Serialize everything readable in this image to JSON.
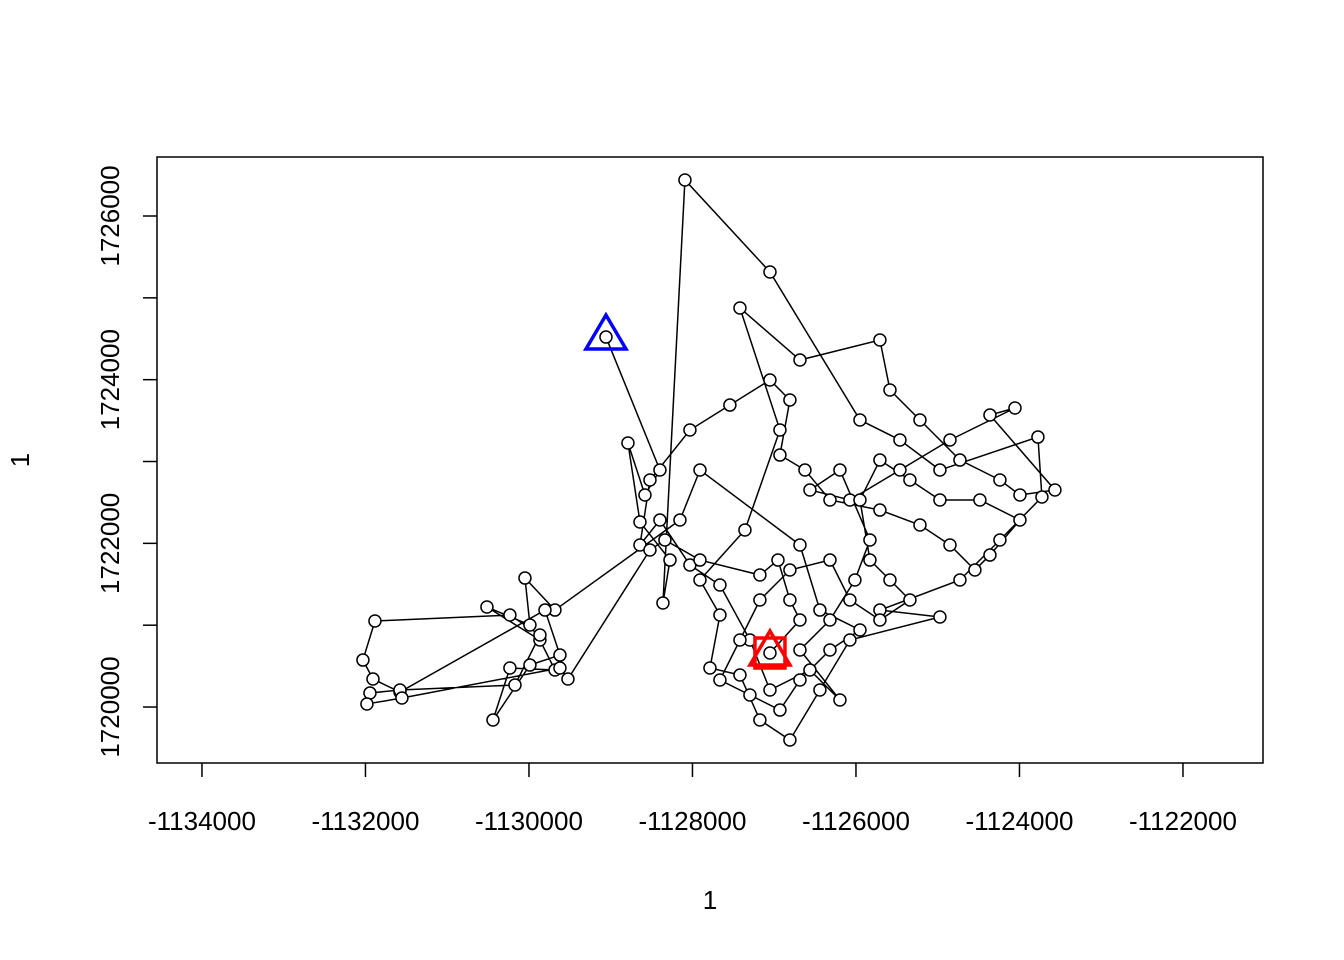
{
  "chart_data": {
    "type": "line",
    "xlabel": "1",
    "ylabel": "1",
    "xlim": [
      -1134550,
      -1121021
    ],
    "ylim": [
      1719316,
      1726721
    ],
    "xticks": [
      -1134000,
      -1132000,
      -1130000,
      -1128000,
      -1126000,
      -1124000,
      -1122000
    ],
    "yticks": [
      1720000,
      1722000,
      1724000,
      1726000
    ],
    "yminor_ticks": [
      1721000,
      1723000,
      1725000
    ],
    "line_color": "#000000",
    "point_fill": "#ffffff",
    "x": [
      -1129058,
      -1128398,
      -1128581,
      -1128789,
      -1128642,
      -1128275,
      -1128361,
      -1128092,
      -1127052,
      -1125951,
      -1125462,
      -1124973,
      -1123774,
      -1123725,
      -1124239,
      -1124728,
      -1125707,
      -1124973,
      -1126074,
      -1126441,
      -1126808,
      -1127175,
      -1127419,
      -1127786,
      -1127664,
      -1127908,
      -1127358,
      -1126930,
      -1127419,
      -1126685,
      -1125707,
      -1125584,
      -1125217,
      -1124728,
      -1124239,
      -1123994,
      -1123566,
      -1124361,
      -1124055,
      -1124850,
      -1125462,
      -1126074,
      -1126563,
      -1126196,
      -1125829,
      -1126013,
      -1126318,
      -1126685,
      -1126196,
      -1126563,
      -1127052,
      -1127297,
      -1127664,
      -1128031,
      -1128398,
      -1128642,
      -1128520,
      -1128031,
      -1127542,
      -1127052,
      -1126808,
      -1126930,
      -1126624,
      -1126318,
      -1125707,
      -1125217,
      -1124850,
      -1124545,
      -1124361,
      -1123994,
      -1124484,
      -1124973,
      -1125340,
      -1125707,
      -1125951,
      -1125829,
      -1125584,
      -1125340,
      -1125707,
      -1126074,
      -1126318,
      -1126808,
      -1127175,
      -1127419,
      -1127664,
      -1127297,
      -1126930,
      -1126685,
      -1126318,
      -1125951,
      -1126441,
      -1126685,
      -1127908,
      -1128153,
      -1129682,
      -1130049,
      -1129988,
      -1130514,
      -1129866,
      -1129682,
      -1130233,
      -1130440,
      -1129988,
      -1129621,
      -1129804,
      -1131578,
      -1131908,
      -1132031,
      -1131884,
      -1130233,
      -1129866,
      -1130171,
      -1131578,
      -1131945,
      -1131982,
      -1131554,
      -1129621,
      -1129523,
      -1128520,
      -1128337,
      -1127908,
      -1127175,
      -1126954,
      -1126808,
      -1126685,
      -1127052
    ],
    "y": [
      1724521,
      1722896,
      1722591,
      1723226,
      1722261,
      1721796,
      1721271,
      1726440,
      1725316,
      1723507,
      1723263,
      1722896,
      1723299,
      1722566,
      1722041,
      1721552,
      1721185,
      1721100,
      1720819,
      1720208,
      1719597,
      1719841,
      1720391,
      1720477,
      1721124,
      1721552,
      1722163,
      1723385,
      1724876,
      1724240,
      1724485,
      1723874,
      1723507,
      1723018,
      1722774,
      1722591,
      1722652,
      1723568,
      1723654,
      1723263,
      1722896,
      1722530,
      1722652,
      1722896,
      1722041,
      1721552,
      1721063,
      1720697,
      1720086,
      1720452,
      1720208,
      1720819,
      1721491,
      1721735,
      1722285,
      1721980,
      1722774,
      1723385,
      1723690,
      1723996,
      1723752,
      1723079,
      1722896,
      1722530,
      1722407,
      1722224,
      1721980,
      1721674,
      1721857,
      1722285,
      1722530,
      1722530,
      1722774,
      1723018,
      1722530,
      1721796,
      1721552,
      1721308,
      1721063,
      1721308,
      1721796,
      1721674,
      1721308,
      1720819,
      1720330,
      1720147,
      1719963,
      1720330,
      1720697,
      1720941,
      1721185,
      1721980,
      1722896,
      1722285,
      1721185,
      1721576,
      1721002,
      1721222,
      1720819,
      1720452,
      1720477,
      1719841,
      1720513,
      1720635,
      1721185,
      1720183,
      1720342,
      1720574,
      1721051,
      1721124,
      1720880,
      1720269,
      1720208,
      1720171,
      1720037,
      1720110,
      1720477,
      1720342,
      1721919,
      1722041,
      1721796,
      1721613,
      1721796,
      1721308,
      1721063,
      1720660
    ],
    "markers": [
      {
        "shape": "triangle",
        "color": "#0000ff",
        "x": -1129058,
        "y": 1724521
      },
      {
        "shape": "square",
        "color": "#ff0000",
        "x": -1127052,
        "y": 1720660
      },
      {
        "shape": "triangle",
        "color": "#ff0000",
        "x": -1127052,
        "y": 1720660
      }
    ]
  }
}
